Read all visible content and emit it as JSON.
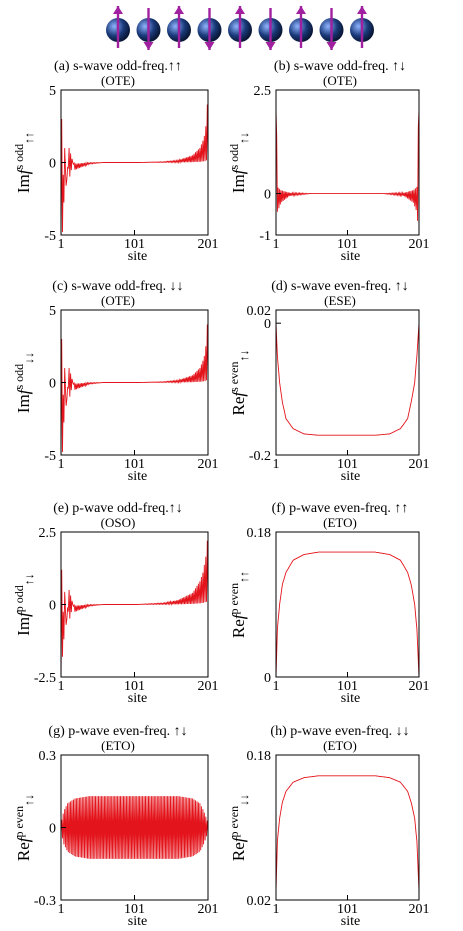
{
  "header": {
    "spin_count": 9,
    "spins": [
      "up",
      "down",
      "up",
      "down",
      "up",
      "down",
      "up",
      "down",
      "up"
    ],
    "colors": {
      "sphere": "#1a3a7a",
      "sphere_highlight": "#8fb4ff",
      "arrow": "#a020a0"
    }
  },
  "colors": {
    "line": "#e3141b",
    "axis": "#000000"
  },
  "chart_data": [
    {
      "type": "line",
      "label": "(a)",
      "title": "s-wave odd-freq.↑↑",
      "subtitle": "(OTE)",
      "ylabel_html": "Im<i>f</i><sup>s odd</sup><sub>↑↑</sub>",
      "xlabel": "site",
      "xlim": [
        1,
        201
      ],
      "ylim": [
        -5,
        5
      ],
      "xticks": [
        "1",
        "101",
        "201"
      ],
      "yticks": [
        "5",
        "0",
        "-5"
      ],
      "profile": "odd_antisym",
      "series": [
        {
          "x": [
            1,
            2,
            3,
            5,
            8,
            12,
            20,
            40,
            60,
            101,
            140,
            160,
            180,
            190,
            194,
            197,
            199,
            200,
            201
          ],
          "y": [
            -5,
            3,
            -4,
            2.3,
            -1.6,
            1,
            -0.5,
            -0.1,
            0,
            0,
            0.05,
            0.15,
            0.5,
            1,
            1.5,
            2,
            3,
            4,
            4.5
          ]
        }
      ]
    },
    {
      "type": "line",
      "label": "(b)",
      "title": "s-wave odd-freq. ↑↓",
      "subtitle": "(OTE)",
      "ylabel_html": "Im<i>f</i><sup>s odd</sup><sub>↑↓</sub>",
      "xlabel": "site",
      "xlim": [
        1,
        201
      ],
      "ylim": [
        -1,
        2.5
      ],
      "xticks": [
        "1",
        "101",
        "201"
      ],
      "yticks": [
        "2.5",
        "0",
        "-1"
      ],
      "profile": "odd_sym",
      "series": [
        {
          "x": [
            1,
            3,
            8,
            20,
            50,
            101,
            150,
            180,
            193,
            198,
            201
          ],
          "y": [
            2,
            0.8,
            0.4,
            0.1,
            0,
            0,
            0,
            0.1,
            0.4,
            0.8,
            2
          ]
        }
      ]
    },
    {
      "type": "line",
      "label": "(c)",
      "title": "s-wave odd-freq. ↓↓",
      "subtitle": "(OTE)",
      "ylabel_html": "Im<i>f</i><sup>s odd</sup><sub>↓↓</sub>",
      "xlabel": "site",
      "xlim": [
        1,
        201
      ],
      "ylim": [
        -5,
        5
      ],
      "xticks": [
        "1",
        "101",
        "201"
      ],
      "yticks": [
        "5",
        "0",
        "-5"
      ],
      "profile": "odd_antisym",
      "series": [
        {
          "x": [
            1,
            2,
            3,
            5,
            8,
            12,
            20,
            40,
            60,
            101,
            140,
            160,
            180,
            190,
            194,
            197,
            199,
            200,
            201
          ],
          "y": [
            -5,
            3,
            -4,
            2.3,
            -1.6,
            1,
            -0.5,
            -0.1,
            0,
            0,
            0.05,
            0.15,
            0.5,
            1,
            1.5,
            2,
            3,
            4,
            4.8
          ]
        }
      ]
    },
    {
      "type": "line",
      "label": "(d)",
      "title": "s-wave even-freq. ↑↓",
      "subtitle": "(ESE)",
      "ylabel_html": "Re<i>f</i><sup>s even</sup><sub>↑↓</sub>",
      "xlabel": "site",
      "xlim": [
        1,
        201
      ],
      "ylim": [
        -0.2,
        0.02
      ],
      "xticks": [
        "1",
        "101",
        "201"
      ],
      "yticks": [
        "0.02",
        "0",
        "-0.2"
      ],
      "profile": "smooth",
      "series": [
        {
          "x": [
            1,
            3,
            6,
            10,
            15,
            25,
            40,
            60,
            101,
            140,
            160,
            175,
            185,
            190,
            195,
            198,
            201
          ],
          "y": [
            0,
            -0.05,
            -0.09,
            -0.12,
            -0.145,
            -0.16,
            -0.168,
            -0.17,
            -0.17,
            -0.17,
            -0.168,
            -0.16,
            -0.145,
            -0.12,
            -0.09,
            -0.05,
            0
          ]
        }
      ]
    },
    {
      "type": "line",
      "label": "(e)",
      "title": "p-wave odd-freq.↑↓",
      "subtitle": "(OSO)",
      "ylabel_html": "Im<i>f</i><sup>p odd</sup><sub>↑↓</sub>",
      "xlabel": "site",
      "xlim": [
        1,
        201
      ],
      "ylim": [
        -2.5,
        2.5
      ],
      "xticks": [
        "1",
        "101",
        "201"
      ],
      "yticks": [
        "2.5",
        "0",
        "-2.5"
      ],
      "profile": "odd_antisym",
      "series": [
        {
          "x": [
            1,
            2,
            3,
            5,
            8,
            12,
            20,
            40,
            60,
            101,
            140,
            160,
            180,
            190,
            194,
            197,
            199,
            200,
            201
          ],
          "y": [
            -2.4,
            1.2,
            -1.5,
            1,
            -0.7,
            0.5,
            -0.25,
            -0.05,
            0,
            0,
            0.05,
            0.15,
            0.4,
            0.8,
            1.1,
            1.5,
            1.8,
            2.2,
            2.4
          ]
        }
      ]
    },
    {
      "type": "line",
      "label": "(f)",
      "title": "p-wave even-freq. ↑↑",
      "subtitle": "(ETO)",
      "ylabel_html": "Re<i>f</i><sup>p even</sup><sub>↑↑</sub>",
      "xlabel": "site",
      "xlim": [
        1,
        201
      ],
      "ylim": [
        0,
        0.18
      ],
      "xticks": [
        "1",
        "101",
        "201"
      ],
      "yticks": [
        "0.18",
        "0"
      ],
      "profile": "smooth",
      "series": [
        {
          "x": [
            1,
            3,
            6,
            10,
            15,
            25,
            40,
            60,
            101,
            140,
            160,
            175,
            185,
            190,
            195,
            198,
            201
          ],
          "y": [
            0,
            0.06,
            0.09,
            0.115,
            0.13,
            0.145,
            0.152,
            0.155,
            0.155,
            0.155,
            0.152,
            0.145,
            0.13,
            0.115,
            0.09,
            0.06,
            0
          ]
        }
      ]
    },
    {
      "type": "line",
      "label": "(g)",
      "title": "p-wave even-freq. ↑↓",
      "subtitle": "(ETO)",
      "ylabel_html": "Re<i>f</i><sup>p even</sup><sub>↑↓</sub>",
      "xlabel": "site",
      "xlim": [
        1,
        201
      ],
      "ylim": [
        -0.3,
        0.3
      ],
      "xticks": [
        "1",
        "101",
        "201"
      ],
      "yticks": [
        "0.3",
        "0",
        "-0.3"
      ],
      "profile": "oscillating",
      "series": [
        {
          "x": [
            1,
            5,
            10,
            20,
            40,
            101,
            160,
            180,
            190,
            195,
            201
          ],
          "y": [
            0.02,
            0.07,
            0.1,
            0.12,
            0.13,
            0.13,
            0.13,
            0.12,
            0.1,
            0.07,
            0.02
          ]
        }
      ]
    },
    {
      "type": "line",
      "label": "(h)",
      "title": "p-wave even-freq. ↓↓",
      "subtitle": "(ETO)",
      "ylabel_html": "Re<i>f</i><sup>p even</sup><sub>↓↓</sub>",
      "xlabel": "site",
      "xlim": [
        1,
        201
      ],
      "ylim": [
        0.02,
        0.18
      ],
      "xticks": [
        "1",
        "101",
        "201"
      ],
      "yticks": [
        "0.18",
        "0.02"
      ],
      "profile": "smooth",
      "series": [
        {
          "x": [
            1,
            3,
            6,
            10,
            15,
            25,
            40,
            60,
            101,
            140,
            160,
            175,
            185,
            190,
            195,
            198,
            201
          ],
          "y": [
            0.03,
            0.085,
            0.11,
            0.128,
            0.14,
            0.15,
            0.155,
            0.157,
            0.157,
            0.157,
            0.155,
            0.15,
            0.14,
            0.128,
            0.11,
            0.085,
            0.03
          ]
        }
      ]
    }
  ]
}
